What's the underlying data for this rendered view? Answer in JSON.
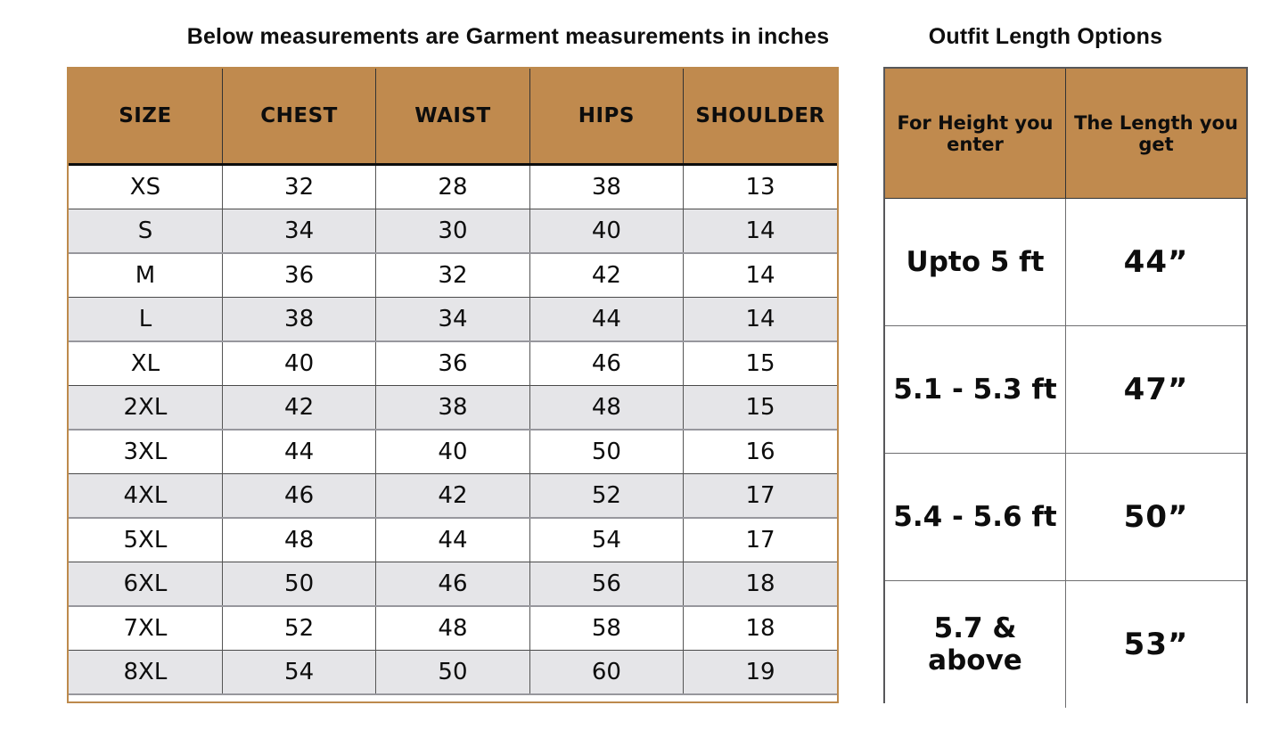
{
  "chart_data": [
    {
      "type": "table",
      "title": "Below measurements are Garment measurements in inches",
      "columns": [
        "SIZE",
        "CHEST",
        "WAIST",
        "HIPS",
        "SHOULDER"
      ],
      "rows": [
        [
          "XS",
          "32",
          "28",
          "38",
          "13"
        ],
        [
          "S",
          "34",
          "30",
          "40",
          "14"
        ],
        [
          "M",
          "36",
          "32",
          "42",
          "14"
        ],
        [
          "L",
          "38",
          "34",
          "44",
          "14"
        ],
        [
          "XL",
          "40",
          "36",
          "46",
          "15"
        ],
        [
          "2XL",
          "42",
          "38",
          "48",
          "15"
        ],
        [
          "3XL",
          "44",
          "40",
          "50",
          "16"
        ],
        [
          "4XL",
          "46",
          "42",
          "52",
          "17"
        ],
        [
          "5XL",
          "48",
          "44",
          "54",
          "17"
        ],
        [
          "6XL",
          "50",
          "46",
          "56",
          "18"
        ],
        [
          "7XL",
          "52",
          "48",
          "58",
          "18"
        ],
        [
          "8XL",
          "54",
          "50",
          "60",
          "19"
        ]
      ],
      "layout_hints": {
        "header_fill": "#c08a4e",
        "alt_row_fill": "#e5e5e8",
        "row_fill": "#ffffff",
        "units": "inches"
      }
    },
    {
      "type": "table",
      "title": "Outfit Length Options",
      "columns": [
        "For Height you enter",
        "The Length you get"
      ],
      "rows": [
        [
          "Upto 5 ft",
          "44”"
        ],
        [
          "5.1 - 5.3 ft",
          "47”"
        ],
        [
          "5.4 - 5.6 ft",
          "50”"
        ],
        [
          "5.7 & above",
          "53”"
        ]
      ],
      "layout_hints": {
        "header_fill": "#c08a4e",
        "row_fill": "#ffffff"
      }
    }
  ],
  "colors": {
    "header_brown": "#c08a4e",
    "alt_row_gray": "#e5e5e8",
    "left_table_border": "#bd8a4c",
    "right_table_border": "#58585a",
    "text": "#0d0d0d",
    "background": "#ffffff"
  }
}
